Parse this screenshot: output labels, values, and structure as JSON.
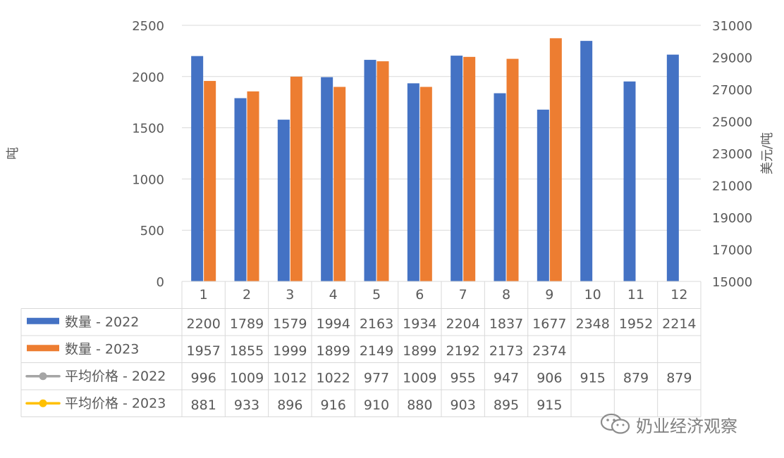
{
  "chart_data": {
    "type": "bar",
    "categories": [
      "1",
      "2",
      "3",
      "4",
      "5",
      "6",
      "7",
      "8",
      "9",
      "10",
      "11",
      "12"
    ],
    "series": [
      {
        "name": "数量 - 2022",
        "kind": "bar",
        "axis": "left",
        "color": "#4472C4",
        "values": [
          2200,
          1789,
          1579,
          1994,
          2163,
          1934,
          2204,
          1837,
          1677,
          2348,
          1952,
          2214
        ]
      },
      {
        "name": "数量 - 2023",
        "kind": "bar",
        "axis": "left",
        "color": "#ED7D31",
        "values": [
          1957,
          1855,
          1999,
          1899,
          2149,
          1899,
          2192,
          2173,
          2374,
          null,
          null,
          null
        ]
      },
      {
        "name": "平均价格 - 2022",
        "kind": "line",
        "axis": "right",
        "color": "#A5A5A5",
        "values": [
          996,
          1009,
          1012,
          1022,
          977,
          1009,
          955,
          947,
          906,
          915,
          879,
          879
        ]
      },
      {
        "name": "平均价格 - 2023",
        "kind": "line",
        "axis": "right",
        "color": "#FFC000",
        "values": [
          881,
          933,
          896,
          916,
          910,
          880,
          903,
          895,
          915,
          null,
          null,
          null
        ]
      }
    ],
    "ylabel": "吨",
    "y2label": "美元/吨",
    "ylim": [
      0,
      2500
    ],
    "yticks": [
      0,
      500,
      1000,
      1500,
      2000,
      2500
    ],
    "y2lim": [
      15000,
      31000
    ],
    "y2ticks": [
      15000,
      17000,
      19000,
      21000,
      23000,
      25000,
      27000,
      29000,
      31000
    ],
    "grid": true,
    "data_table": true
  },
  "watermark": {
    "text": "奶业经济观察",
    "icon": "wechat-icon"
  }
}
